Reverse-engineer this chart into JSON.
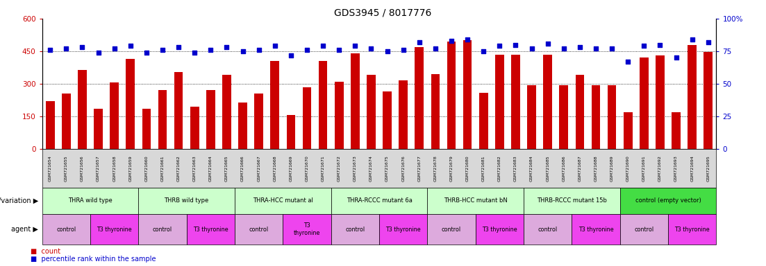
{
  "title": "GDS3945 / 8017776",
  "samples": [
    "GSM721654",
    "GSM721655",
    "GSM721656",
    "GSM721657",
    "GSM721658",
    "GSM721659",
    "GSM721660",
    "GSM721661",
    "GSM721662",
    "GSM721663",
    "GSM721664",
    "GSM721665",
    "GSM721666",
    "GSM721667",
    "GSM721668",
    "GSM721669",
    "GSM721670",
    "GSM721671",
    "GSM721672",
    "GSM721673",
    "GSM721674",
    "GSM721675",
    "GSM721676",
    "GSM721677",
    "GSM721678",
    "GSM721679",
    "GSM721680",
    "GSM721681",
    "GSM721682",
    "GSM721683",
    "GSM721684",
    "GSM721685",
    "GSM721686",
    "GSM721687",
    "GSM721688",
    "GSM721689",
    "GSM721690",
    "GSM721691",
    "GSM721692",
    "GSM721693",
    "GSM721694",
    "GSM721695"
  ],
  "counts": [
    220,
    255,
    365,
    185,
    305,
    415,
    185,
    270,
    355,
    195,
    270,
    340,
    215,
    255,
    405,
    155,
    285,
    405,
    310,
    440,
    340,
    265,
    315,
    470,
    345,
    495,
    500,
    260,
    435,
    435,
    295,
    435,
    295,
    340,
    295,
    295,
    170,
    420,
    430,
    170,
    480,
    445
  ],
  "percentiles": [
    76,
    77,
    78,
    74,
    77,
    79,
    74,
    76,
    78,
    74,
    76,
    78,
    75,
    76,
    79,
    72,
    76,
    79,
    76,
    79,
    77,
    75,
    76,
    82,
    77,
    83,
    84,
    75,
    79,
    80,
    77,
    81,
    77,
    78,
    77,
    77,
    67,
    79,
    80,
    70,
    84,
    82
  ],
  "bar_color": "#cc0000",
  "dot_color": "#0000cc",
  "ylim_left": [
    0,
    600
  ],
  "ylim_right": [
    0,
    100
  ],
  "yticks_left": [
    0,
    150,
    300,
    450,
    600
  ],
  "yticks_right": [
    0,
    25,
    50,
    75,
    100
  ],
  "grid_lines": [
    150,
    300,
    450
  ],
  "genotype_groups": [
    {
      "label": "THRA wild type",
      "start": 0,
      "end": 5,
      "color": "#ccffcc"
    },
    {
      "label": "THRB wild type",
      "start": 6,
      "end": 11,
      "color": "#ccffcc"
    },
    {
      "label": "THRA-HCC mutant al",
      "start": 12,
      "end": 17,
      "color": "#ccffcc"
    },
    {
      "label": "THRA-RCCC mutant 6a",
      "start": 18,
      "end": 23,
      "color": "#ccffcc"
    },
    {
      "label": "THRB-HCC mutant bN",
      "start": 24,
      "end": 29,
      "color": "#ccffcc"
    },
    {
      "label": "THRB-RCCC mutant 15b",
      "start": 30,
      "end": 35,
      "color": "#ccffcc"
    },
    {
      "label": "control (empty vector)",
      "start": 36,
      "end": 41,
      "color": "#44dd44"
    }
  ],
  "agent_groups": [
    {
      "label": "control",
      "start": 0,
      "end": 2,
      "color": "#ddaadd"
    },
    {
      "label": "T3 thyronine",
      "start": 3,
      "end": 5,
      "color": "#ee44ee"
    },
    {
      "label": "control",
      "start": 6,
      "end": 8,
      "color": "#ddaadd"
    },
    {
      "label": "T3 thyronine",
      "start": 9,
      "end": 11,
      "color": "#ee44ee"
    },
    {
      "label": "control",
      "start": 12,
      "end": 14,
      "color": "#ddaadd"
    },
    {
      "label": "T3\nthyronine",
      "start": 15,
      "end": 17,
      "color": "#ee44ee"
    },
    {
      "label": "control",
      "start": 18,
      "end": 20,
      "color": "#ddaadd"
    },
    {
      "label": "T3 thyronine",
      "start": 21,
      "end": 23,
      "color": "#ee44ee"
    },
    {
      "label": "control",
      "start": 24,
      "end": 26,
      "color": "#ddaadd"
    },
    {
      "label": "T3 thyronine",
      "start": 27,
      "end": 29,
      "color": "#ee44ee"
    },
    {
      "label": "control",
      "start": 30,
      "end": 32,
      "color": "#ddaadd"
    },
    {
      "label": "T3 thyronine",
      "start": 33,
      "end": 35,
      "color": "#ee44ee"
    },
    {
      "label": "control",
      "start": 36,
      "end": 38,
      "color": "#ddaadd"
    },
    {
      "label": "T3 thyronine",
      "start": 39,
      "end": 41,
      "color": "#ee44ee"
    }
  ],
  "legend_count_color": "#cc0000",
  "legend_dot_color": "#0000cc",
  "xlabel_genotype": "genotype/variation",
  "xlabel_agent": "agent"
}
